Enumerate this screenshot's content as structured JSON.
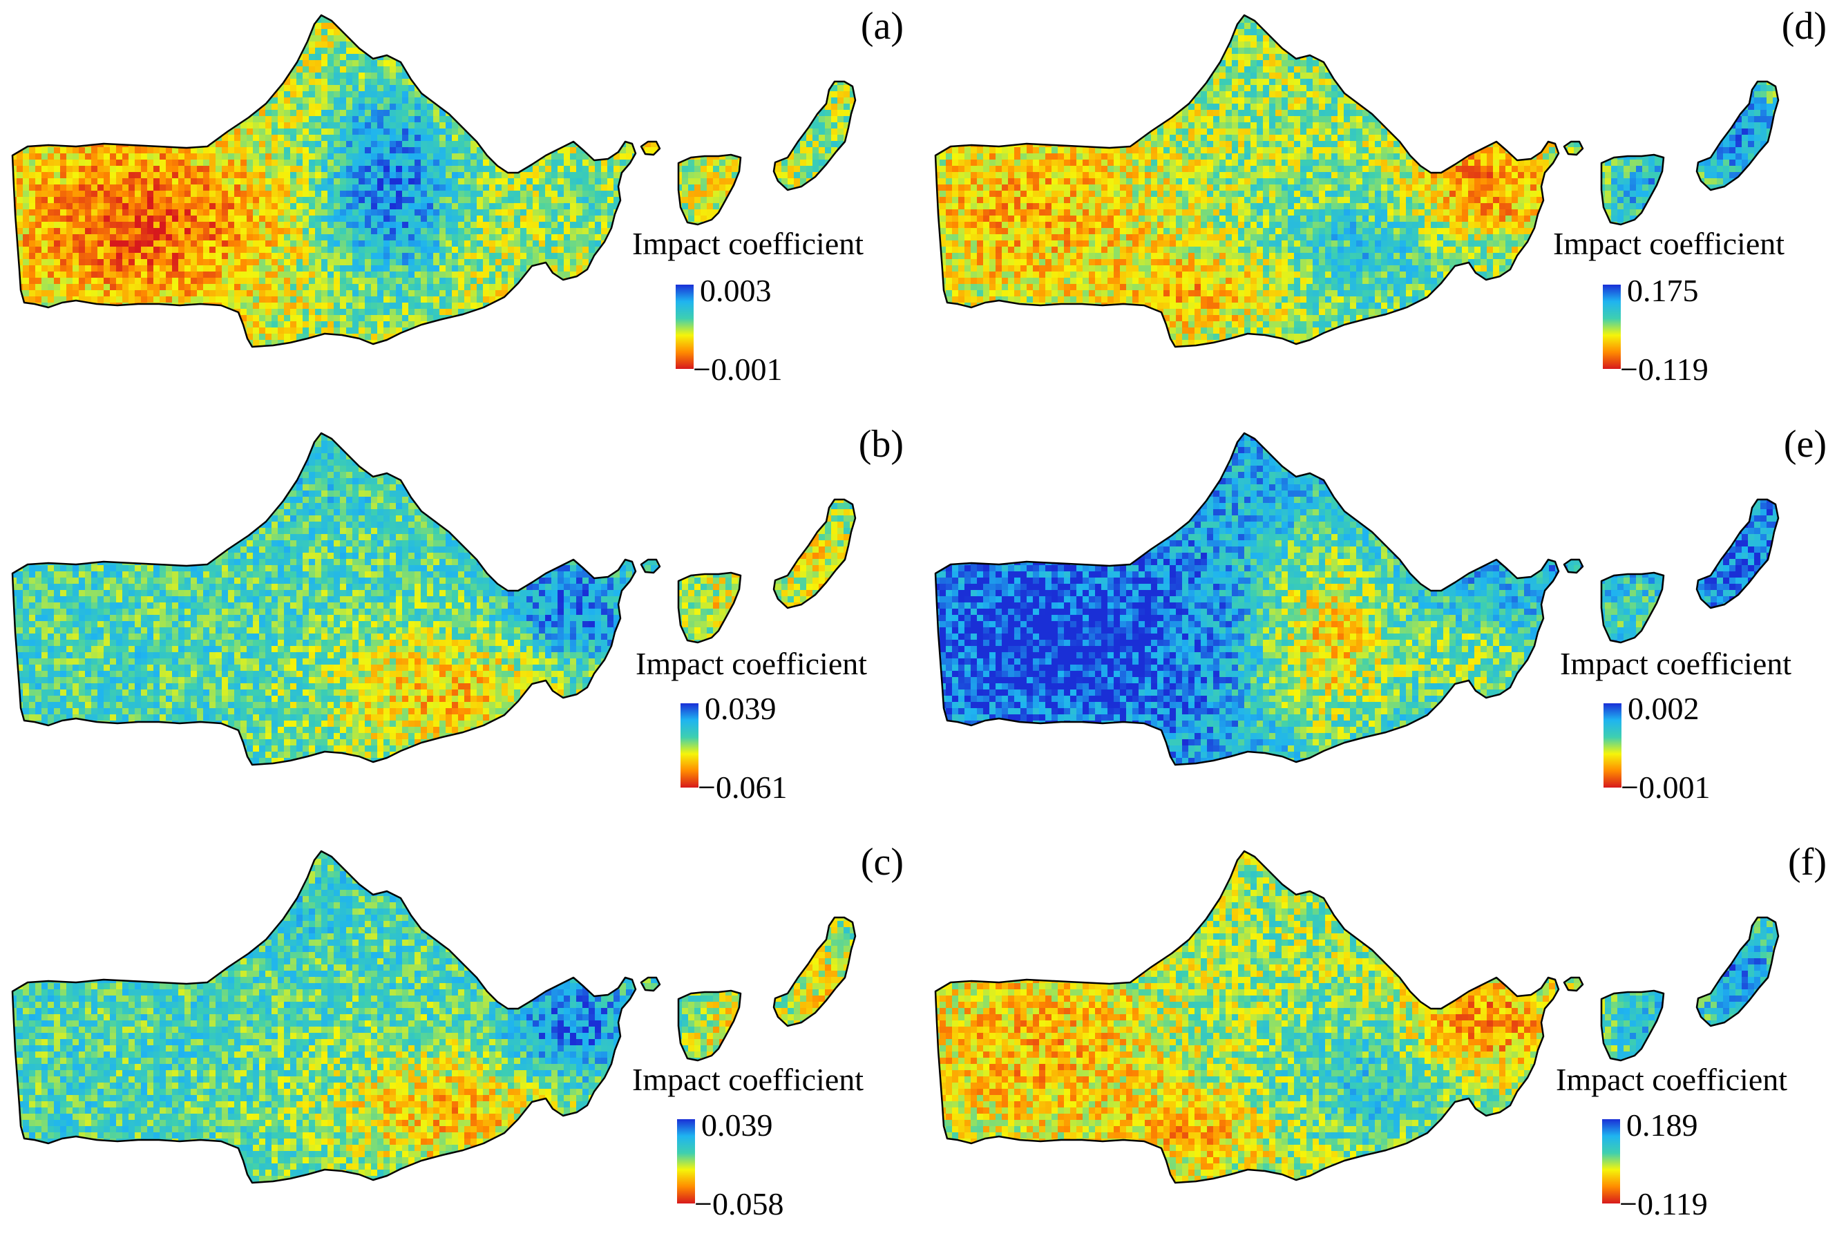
{
  "legend_title": "Impact coefficient",
  "colormap": [
    "#d7191c",
    "#ff8c00",
    "#f5f50a",
    "#3ecfb0",
    "#1fb4f0",
    "#1a2fd6"
  ],
  "panels": [
    {
      "letter": "(a)",
      "max": "0.003",
      "min": "−0.001",
      "pattern": "a"
    },
    {
      "letter": "(d)",
      "max": "0.175",
      "min": "−0.119",
      "pattern": "d"
    },
    {
      "letter": "(b)",
      "max": "0.039",
      "min": "−0.061",
      "pattern": "b"
    },
    {
      "letter": "(e)",
      "max": "0.002",
      "min": "−0.001",
      "pattern": "e"
    },
    {
      "letter": "(c)",
      "max": "0.039",
      "min": "−0.058",
      "pattern": "c"
    },
    {
      "letter": "(f)",
      "max": "0.189",
      "min": "−0.119",
      "pattern": "f"
    }
  ]
}
